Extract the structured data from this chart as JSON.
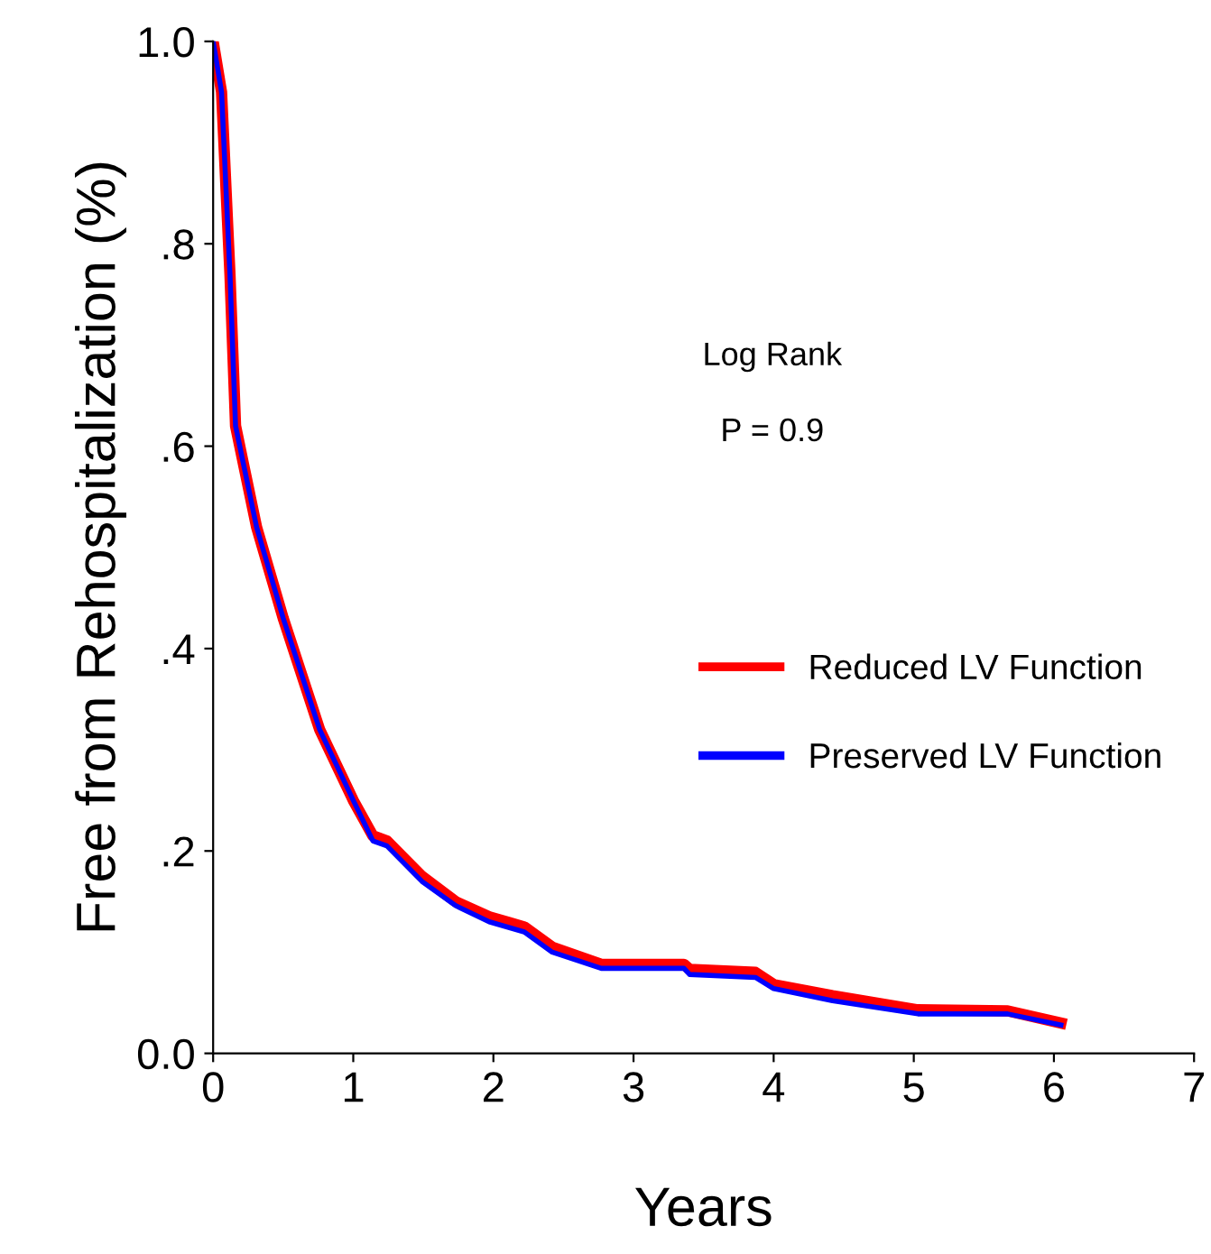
{
  "chart_data": {
    "type": "line",
    "xlabel": "Years",
    "ylabel": "Free from Rehospitalization (%)",
    "xlim": [
      0,
      7
    ],
    "xticks": [
      0,
      1,
      2,
      3,
      4,
      5,
      6,
      7
    ],
    "ylim": [
      0,
      1.0
    ],
    "yticks": [
      {
        "value": 0,
        "label": "0.0"
      },
      {
        "value": 0.2,
        "label": ".2"
      },
      {
        "value": 0.4,
        "label": ".4"
      },
      {
        "value": 0.6,
        "label": ".6"
      },
      {
        "value": 0.8,
        "label": ".8"
      },
      {
        "value": 1.0,
        "label": "1.0"
      }
    ],
    "annotations": [
      "Log Rank",
      "P = 0.9"
    ],
    "legend": "right",
    "grid": false,
    "line_style": "solid",
    "marker": "none",
    "series": [
      {
        "name": "Reduced LV Function",
        "color": "#ff0000",
        "x": [
          0,
          0.06,
          0.12,
          0.16,
          0.31,
          0.5,
          0.76,
          1.0,
          1.14,
          1.24,
          1.49,
          1.73,
          1.97,
          2.22,
          2.42,
          2.77,
          3.36,
          3.4,
          3.87,
          4.0,
          4.42,
          5.03,
          5.67,
          6.05
        ],
        "values": [
          1.0,
          0.95,
          0.77,
          0.62,
          0.52,
          0.43,
          0.32,
          0.25,
          0.215,
          0.21,
          0.175,
          0.15,
          0.135,
          0.125,
          0.105,
          0.088,
          0.088,
          0.083,
          0.08,
          0.068,
          0.057,
          0.043,
          0.042,
          0.03
        ]
      },
      {
        "name": "Preserved LV Function",
        "color": "#0000ff",
        "x": [
          0,
          0.06,
          0.12,
          0.16,
          0.31,
          0.5,
          0.76,
          1.0,
          1.14,
          1.24,
          1.49,
          1.73,
          1.97,
          2.22,
          2.42,
          2.77,
          3.36,
          3.4,
          3.87,
          4.0,
          4.42,
          5.03,
          5.67,
          6.05
        ],
        "values": [
          1.0,
          0.95,
          0.77,
          0.62,
          0.52,
          0.43,
          0.32,
          0.25,
          0.21,
          0.205,
          0.17,
          0.146,
          0.13,
          0.12,
          0.1,
          0.084,
          0.084,
          0.078,
          0.075,
          0.064,
          0.052,
          0.039,
          0.039,
          0.028
        ]
      }
    ]
  }
}
